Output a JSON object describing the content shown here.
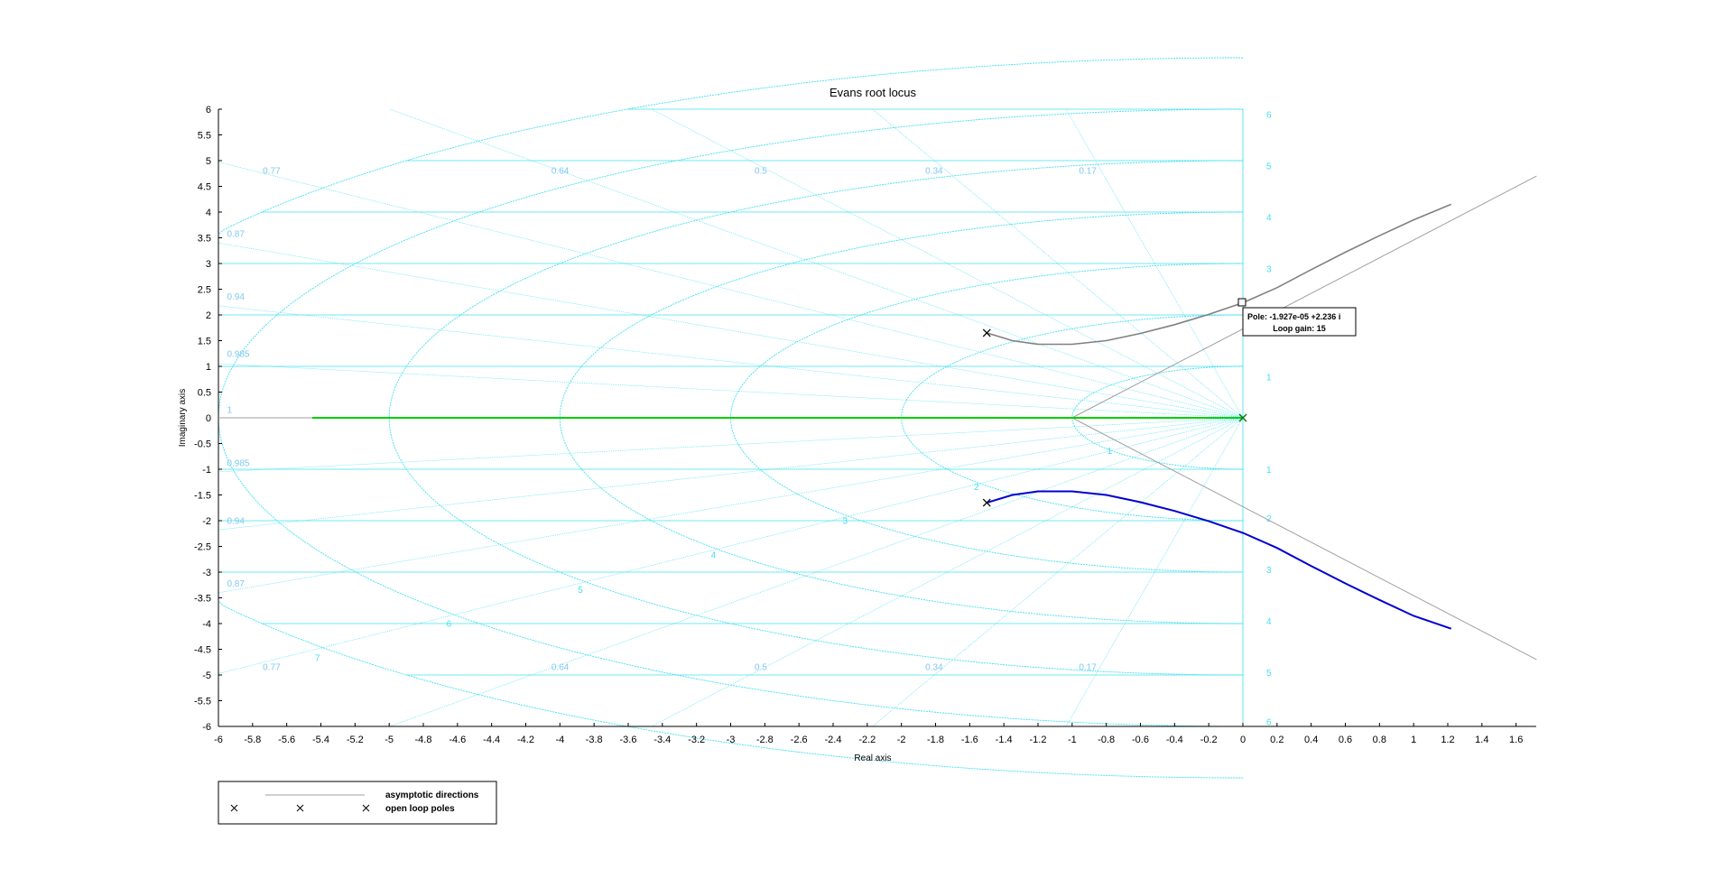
{
  "chart_data": {
    "type": "line",
    "title": "Evans root locus",
    "xlabel": "Real axis",
    "ylabel": "Imaginary axis",
    "xlim": [
      -6,
      1.7
    ],
    "ylim": [
      -6,
      6
    ],
    "x_ticks": [
      -6,
      -5.8,
      -5.6,
      -5.4,
      -5.2,
      -5,
      -4.8,
      -4.6,
      -4.4,
      -4.2,
      -4,
      -3.8,
      -3.6,
      -3.4,
      -3.2,
      -3,
      -2.8,
      -2.6,
      -2.4,
      -2.2,
      -2,
      -1.8,
      -1.6,
      -1.4,
      -1.2,
      -1,
      -0.8,
      -0.6,
      -0.4,
      -0.2,
      0,
      0.2,
      0.4,
      0.6,
      0.8,
      1,
      1.2,
      1.4,
      1.6
    ],
    "y_ticks": [
      -6,
      -5.5,
      -5,
      -4.5,
      -4,
      -3.5,
      -3,
      -2.5,
      -2,
      -1.5,
      -1,
      -0.5,
      0,
      0.5,
      1,
      1.5,
      2,
      2.5,
      3,
      3.5,
      4,
      4.5,
      5,
      5.5,
      6
    ],
    "colors": {
      "grid": "#40e0f0",
      "grid_text": "#7fc8f0",
      "asymptote": "#a0a0a0",
      "branch_real": "#00d000",
      "branch_upper": "#808080",
      "branch_lower": "#0000d0",
      "pole_marker": "#000000"
    },
    "grid": {
      "damping_values": [
        {
          "label": "0.77",
          "pos": [
            -5.74,
            4.75
          ],
          "neg": [
            -5.74,
            -4.9
          ]
        },
        {
          "label": "0.87",
          "pos": [
            -5.95,
            3.52
          ],
          "neg": [
            -5.95,
            -3.28
          ]
        },
        {
          "label": "0.94",
          "pos": [
            -5.95,
            2.3
          ],
          "neg": [
            -5.95,
            -2.06
          ]
        },
        {
          "label": "0.985",
          "pos": [
            -5.95,
            1.18
          ],
          "neg": [
            -5.95,
            -0.94
          ]
        },
        {
          "label": "1",
          "pos": [
            -5.95,
            0.1
          ],
          "neg": null
        },
        {
          "label": "0.64",
          "pos": [
            -4.05,
            4.75
          ],
          "neg": [
            -4.05,
            -4.9
          ]
        },
        {
          "label": "0.5",
          "pos": [
            -2.86,
            4.75
          ],
          "neg": [
            -2.86,
            -4.9
          ]
        },
        {
          "label": "0.34",
          "pos": [
            -1.86,
            4.75
          ],
          "neg": [
            -1.86,
            -4.9
          ]
        },
        {
          "label": "0.17",
          "pos": [
            -0.96,
            4.75
          ],
          "neg": [
            -0.96,
            -4.9
          ]
        }
      ],
      "natural_freq_values": [
        1,
        2,
        3,
        4,
        5,
        6,
        7
      ],
      "right_side_labels": [
        {
          "label": "6",
          "y": 5.9
        },
        {
          "label": "5",
          "y": 4.9
        },
        {
          "label": "4",
          "y": 3.9
        },
        {
          "label": "3",
          "y": 2.9
        },
        {
          "label": "1",
          "y": 0.8
        },
        {
          "label": "1",
          "y": -1.0
        },
        {
          "label": "2",
          "y": -1.95
        },
        {
          "label": "3",
          "y": -2.95
        },
        {
          "label": "4",
          "y": -3.95
        },
        {
          "label": "5",
          "y": -4.95
        },
        {
          "label": "6",
          "y": -5.9
        }
      ]
    },
    "open_loop_poles": [
      {
        "x": -1.5,
        "y": 1.65
      },
      {
        "x": -1.5,
        "y": -1.65
      },
      {
        "x": 0,
        "y": 0
      }
    ],
    "series": [
      {
        "name": "asymptotic directions",
        "kind": "asymptote",
        "x": [
          -1,
          1.72
        ],
        "y": [
          0,
          4.7
        ]
      },
      {
        "kind": "asymptote",
        "x": [
          -1,
          1.72
        ],
        "y": [
          0,
          -4.7
        ]
      },
      {
        "kind": "asymptote",
        "x": [
          -6,
          -1
        ],
        "y": [
          0,
          0
        ]
      },
      {
        "kind": "branch_real",
        "x": [
          -5.45,
          0
        ],
        "y": [
          0,
          0
        ]
      },
      {
        "kind": "branch_upper",
        "x": [
          -1.5,
          -1.35,
          -1.2,
          -1.0,
          -0.8,
          -0.6,
          -0.4,
          -0.2,
          0,
          0.2,
          0.4,
          0.6,
          0.8,
          1.0,
          1.22
        ],
        "y": [
          1.65,
          1.5,
          1.43,
          1.43,
          1.5,
          1.64,
          1.81,
          2.01,
          2.236,
          2.53,
          2.88,
          3.22,
          3.54,
          3.85,
          4.15
        ]
      },
      {
        "kind": "branch_lower",
        "x": [
          -1.5,
          -1.35,
          -1.2,
          -1.0,
          -0.8,
          -0.6,
          -0.4,
          -0.2,
          0,
          0.2,
          0.4,
          0.6,
          0.8,
          1.0,
          1.22
        ],
        "y": [
          -1.65,
          -1.5,
          -1.43,
          -1.43,
          -1.5,
          -1.64,
          -1.81,
          -2.01,
          -2.236,
          -2.53,
          -2.88,
          -3.22,
          -3.54,
          -3.85,
          -4.1
        ]
      }
    ],
    "datatip": {
      "pole_line": "Pole: -1.927e-05 +2.236 i",
      "gain_line": "Loop gain: 15",
      "x": -1.927e-05,
      "y": 2.236
    },
    "legend": {
      "placement": "bottom-left",
      "entries": [
        {
          "label": "asymptotic directions",
          "style": "line"
        },
        {
          "label": "open loop poles",
          "style": "markers"
        }
      ]
    }
  }
}
